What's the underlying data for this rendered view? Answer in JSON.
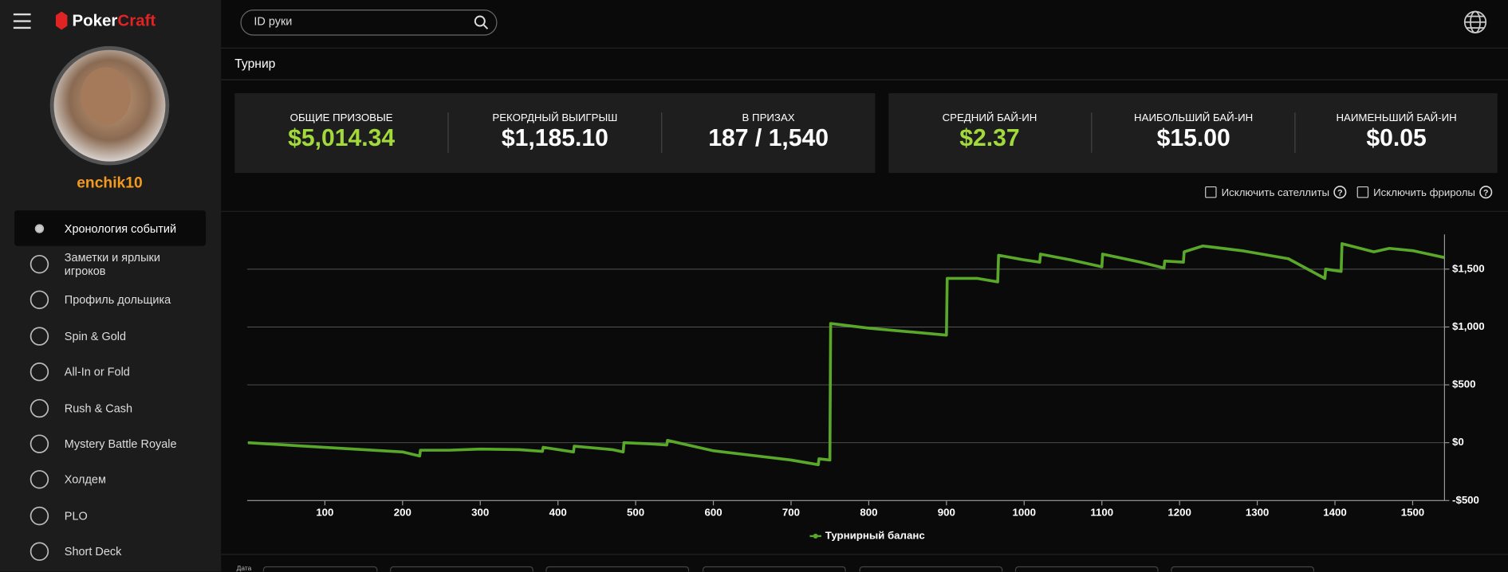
{
  "header": {
    "logo_main": "Poker",
    "logo_accent": "Craft",
    "search_placeholder": "ID руки"
  },
  "profile": {
    "username": "enchik10"
  },
  "menu": [
    "Хронология событий",
    "Заметки и ярлыки игроков",
    "Профиль дольщика",
    "Spin & Gold",
    "All-In or Fold",
    "Rush & Cash",
    "Mystery Battle Royale",
    "Холдем",
    "PLO",
    "Short Deck"
  ],
  "section_title": "Турнир",
  "stats": [
    [
      {
        "label": "ОБЩИЕ ПРИЗОВЫЕ",
        "value": "$5,014.34"
      },
      {
        "label": "РЕКОРДНЫЙ ВЫИГРЫШ",
        "value": "$1,185.10"
      },
      {
        "label": "В ПРИЗАХ",
        "value": "187 / 1,540"
      }
    ],
    [
      {
        "label": "СРЕДНИЙ БАЙ-ИН",
        "value": "$2.37"
      },
      {
        "label": "НАИБОЛЬШИЙ БАЙ-ИН",
        "value": "$15.00"
      },
      {
        "label": "НАИМЕНЬШИЙ БАЙ-ИН",
        "value": "$0.05"
      }
    ]
  ],
  "filters": [
    "Исключить сателлиты",
    "Исключить фриролы"
  ],
  "bottom_label": "Дата",
  "chart_data": {
    "type": "line",
    "x": [
      1,
      50,
      100,
      150,
      200,
      222,
      223,
      260,
      300,
      350,
      380,
      381,
      420,
      421,
      470,
      484,
      485,
      520,
      540,
      541,
      600,
      650,
      700,
      735,
      736,
      750,
      751,
      800,
      850,
      900,
      901,
      940,
      966,
      967,
      1000,
      1020,
      1021,
      1060,
      1100,
      1101,
      1150,
      1180,
      1181,
      1205,
      1206,
      1230,
      1280,
      1340,
      1387,
      1388,
      1408,
      1409,
      1450,
      1470,
      1500,
      1541
    ],
    "series": [
      {
        "name": "Турнирный баланс",
        "color": "#5aa82a",
        "values": [
          0,
          -20,
          -40,
          -60,
          -80,
          -115,
          -65,
          -65,
          -55,
          -60,
          -75,
          -40,
          -80,
          -30,
          -60,
          -80,
          0,
          -10,
          -20,
          20,
          -70,
          -110,
          -150,
          -190,
          -140,
          -150,
          1030,
          990,
          960,
          930,
          1420,
          1420,
          1390,
          1620,
          1580,
          1560,
          1630,
          1580,
          1520,
          1630,
          1560,
          1510,
          1570,
          1560,
          1650,
          1700,
          1660,
          1590,
          1420,
          1500,
          1480,
          1720,
          1650,
          1680,
          1660,
          1600
        ]
      }
    ],
    "xlim": [
      0,
      1541
    ],
    "ylim": [
      -500,
      1800
    ],
    "xticks": [
      100,
      200,
      300,
      400,
      500,
      600,
      700,
      800,
      900,
      1000,
      1100,
      1200,
      1300,
      1400,
      1500
    ],
    "yticks": [
      {
        "value": -500,
        "label": "-$500"
      },
      {
        "value": 0,
        "label": "$0"
      },
      {
        "value": 500,
        "label": "$500"
      },
      {
        "value": 1000,
        "label": "$1,000"
      },
      {
        "value": 1500,
        "label": "$1,500"
      }
    ],
    "grid": true,
    "legend": "bottom"
  }
}
